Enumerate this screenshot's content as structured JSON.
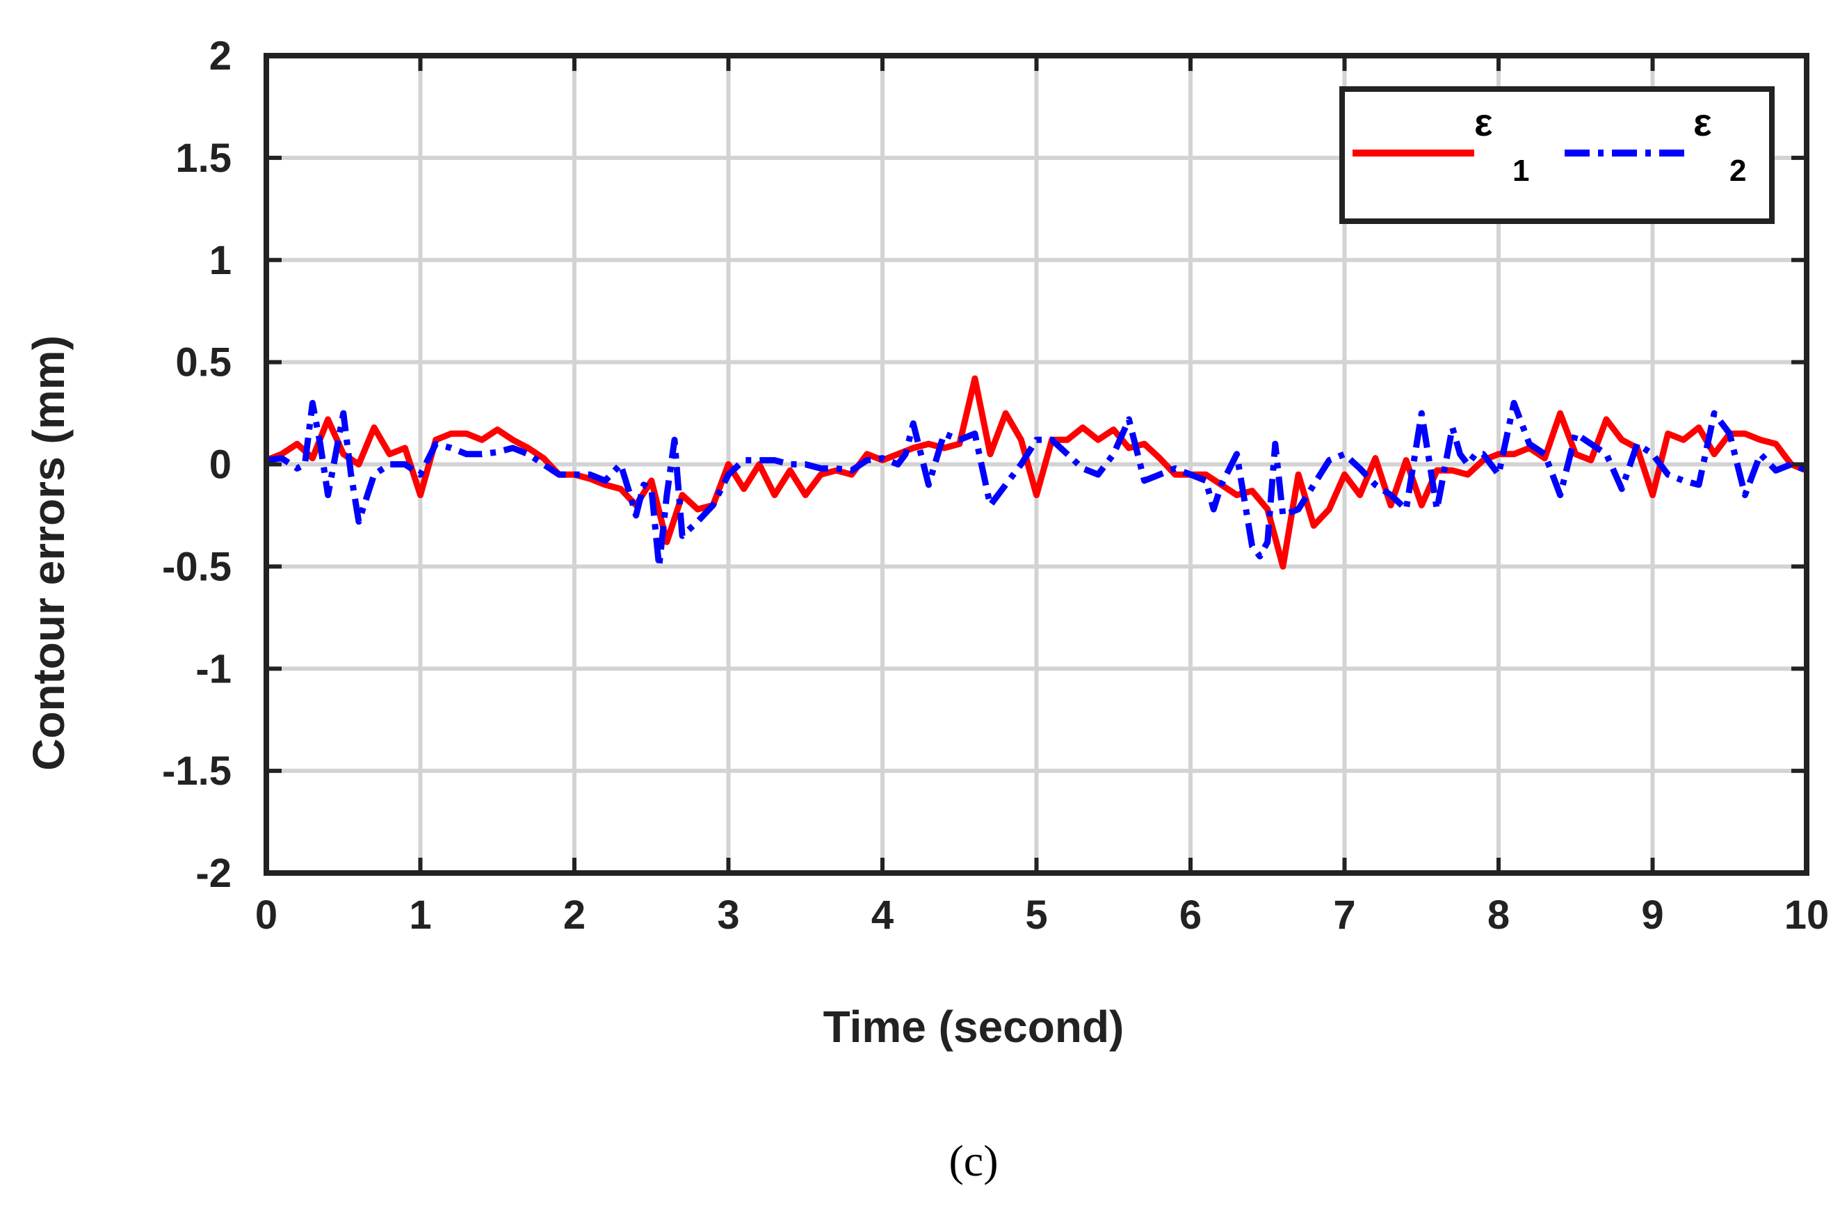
{
  "chart_data": {
    "type": "line",
    "title": "",
    "xlabel": "Time (second)",
    "ylabel": "Contour errors (mm)",
    "xlim": [
      0,
      10
    ],
    "ylim": [
      -2,
      2
    ],
    "xticks": [
      "0",
      "1",
      "2",
      "3",
      "4",
      "5",
      "6",
      "7",
      "8",
      "9",
      "10"
    ],
    "yticks": [
      "2",
      "1.5",
      "1",
      "0.5",
      "0",
      "-0.5",
      "-1",
      "-1.5",
      "-2"
    ],
    "grid": true,
    "legend_position": "top-right",
    "series": [
      {
        "name": "ε",
        "subscript": "1",
        "color": "#ff0000",
        "style": "solid",
        "x": [
          0,
          0.1,
          0.2,
          0.3,
          0.4,
          0.5,
          0.6,
          0.7,
          0.8,
          0.9,
          1.0,
          1.1,
          1.2,
          1.3,
          1.4,
          1.5,
          1.6,
          1.7,
          1.8,
          1.9,
          2.0,
          2.1,
          2.2,
          2.3,
          2.4,
          2.5,
          2.6,
          2.7,
          2.8,
          2.9,
          3.0,
          3.1,
          3.2,
          3.3,
          3.4,
          3.5,
          3.6,
          3.7,
          3.8,
          3.9,
          4.0,
          4.1,
          4.2,
          4.3,
          4.4,
          4.5,
          4.6,
          4.7,
          4.8,
          4.9,
          5.0,
          5.1,
          5.2,
          5.3,
          5.4,
          5.5,
          5.6,
          5.7,
          5.8,
          5.9,
          6.0,
          6.1,
          6.2,
          6.3,
          6.4,
          6.5,
          6.6,
          6.7,
          6.8,
          6.9,
          7.0,
          7.1,
          7.2,
          7.3,
          7.4,
          7.5,
          7.6,
          7.7,
          7.8,
          7.9,
          8.0,
          8.1,
          8.2,
          8.3,
          8.4,
          8.5,
          8.6,
          8.7,
          8.8,
          8.9,
          9.0,
          9.1,
          9.2,
          9.3,
          9.4,
          9.5,
          9.6,
          9.7,
          9.8,
          9.9,
          10.0
        ],
        "y": [
          0.02,
          0.05,
          0.1,
          0.03,
          0.22,
          0.05,
          0.0,
          0.18,
          0.05,
          0.08,
          -0.15,
          0.12,
          0.15,
          0.15,
          0.12,
          0.17,
          0.12,
          0.08,
          0.03,
          -0.05,
          -0.05,
          -0.07,
          -0.1,
          -0.12,
          -0.2,
          -0.08,
          -0.38,
          -0.15,
          -0.22,
          -0.2,
          0.0,
          -0.12,
          0.0,
          -0.15,
          -0.03,
          -0.15,
          -0.05,
          -0.03,
          -0.05,
          0.05,
          0.02,
          0.05,
          0.08,
          0.1,
          0.08,
          0.1,
          0.42,
          0.05,
          0.25,
          0.12,
          -0.15,
          0.12,
          0.12,
          0.18,
          0.12,
          0.17,
          0.08,
          0.1,
          0.03,
          -0.05,
          -0.05,
          -0.05,
          -0.1,
          -0.15,
          -0.13,
          -0.22,
          -0.5,
          -0.05,
          -0.3,
          -0.22,
          -0.05,
          -0.15,
          0.03,
          -0.2,
          0.02,
          -0.2,
          -0.03,
          -0.03,
          -0.05,
          0.02,
          0.05,
          0.05,
          0.08,
          0.03,
          0.25,
          0.05,
          0.02,
          0.22,
          0.12,
          0.08,
          -0.15,
          0.15,
          0.12,
          0.18,
          0.05,
          0.15,
          0.15,
          0.12,
          0.1,
          0.0,
          -0.03
        ]
      },
      {
        "name": "ε",
        "subscript": "2",
        "color": "#0000ff",
        "style": "dash-dot",
        "x": [
          0,
          0.1,
          0.2,
          0.25,
          0.3,
          0.35,
          0.4,
          0.45,
          0.5,
          0.55,
          0.6,
          0.7,
          0.8,
          0.9,
          1.0,
          1.1,
          1.2,
          1.3,
          1.4,
          1.5,
          1.6,
          1.7,
          1.8,
          1.9,
          2.0,
          2.1,
          2.2,
          2.3,
          2.35,
          2.4,
          2.45,
          2.5,
          2.55,
          2.6,
          2.65,
          2.7,
          2.8,
          2.9,
          3.0,
          3.1,
          3.2,
          3.3,
          3.4,
          3.5,
          3.6,
          3.7,
          3.8,
          3.9,
          4.0,
          4.1,
          4.15,
          4.2,
          4.3,
          4.4,
          4.5,
          4.6,
          4.7,
          4.8,
          4.9,
          5.0,
          5.1,
          5.2,
          5.3,
          5.4,
          5.5,
          5.6,
          5.7,
          5.8,
          5.9,
          6.0,
          6.1,
          6.15,
          6.2,
          6.3,
          6.4,
          6.45,
          6.5,
          6.55,
          6.6,
          6.7,
          6.8,
          6.9,
          7.0,
          7.1,
          7.2,
          7.3,
          7.4,
          7.5,
          7.6,
          7.7,
          7.75,
          7.8,
          7.85,
          7.9,
          8.0,
          8.1,
          8.2,
          8.3,
          8.4,
          8.5,
          8.6,
          8.7,
          8.8,
          8.9,
          9.0,
          9.1,
          9.2,
          9.3,
          9.4,
          9.5,
          9.6,
          9.7,
          9.8,
          9.9,
          10.0
        ],
        "y": [
          0.02,
          0.03,
          -0.02,
          0.0,
          0.3,
          0.1,
          -0.15,
          0.05,
          0.25,
          -0.05,
          -0.28,
          -0.05,
          0.0,
          0.0,
          -0.05,
          0.1,
          0.08,
          0.05,
          0.05,
          0.06,
          0.08,
          0.05,
          0.0,
          -0.05,
          -0.05,
          -0.05,
          -0.08,
          0.0,
          -0.12,
          -0.25,
          -0.1,
          -0.12,
          -0.5,
          -0.15,
          0.12,
          -0.35,
          -0.28,
          -0.2,
          -0.05,
          0.02,
          0.02,
          0.02,
          0.0,
          0.0,
          -0.02,
          -0.02,
          -0.03,
          0.02,
          0.03,
          0.0,
          0.05,
          0.2,
          -0.1,
          0.15,
          0.12,
          0.15,
          -0.2,
          -0.1,
          0.0,
          0.12,
          0.12,
          0.05,
          -0.02,
          -0.05,
          0.05,
          0.22,
          -0.08,
          -0.05,
          -0.02,
          -0.05,
          -0.08,
          -0.22,
          -0.1,
          0.05,
          -0.4,
          -0.45,
          -0.38,
          0.1,
          -0.25,
          -0.22,
          -0.1,
          0.02,
          0.05,
          -0.02,
          -0.1,
          -0.15,
          -0.22,
          0.25,
          -0.22,
          0.18,
          0.05,
          0.0,
          0.05,
          0.05,
          -0.05,
          0.3,
          0.1,
          0.05,
          -0.15,
          0.15,
          0.1,
          0.05,
          -0.12,
          0.1,
          0.05,
          -0.05,
          -0.08,
          -0.1,
          0.25,
          0.15,
          -0.15,
          0.05,
          -0.03,
          0.0,
          -0.03
        ]
      }
    ]
  },
  "caption": "(c)"
}
